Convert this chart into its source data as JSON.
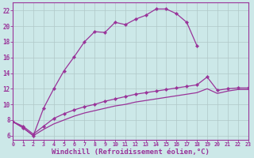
{
  "background_color": "#cce8e8",
  "grid_color": "#b0c8c8",
  "line_color": "#993399",
  "xlabel": "Windchill (Refroidissement éolien,°C)",
  "xlabel_fontsize": 6.5,
  "ylabel_ticks": [
    6,
    8,
    10,
    12,
    14,
    16,
    18,
    20,
    22
  ],
  "xlim": [
    0,
    23
  ],
  "ylim": [
    5.5,
    23.0
  ],
  "xtick_labels": [
    "0",
    "1",
    "2",
    "3",
    "4",
    "5",
    "6",
    "7",
    "8",
    "9",
    "10",
    "11",
    "12",
    "13",
    "14",
    "15",
    "16",
    "17",
    "18",
    "19",
    "20",
    "21",
    "22",
    "23"
  ],
  "line1_x": [
    0,
    1,
    2,
    3,
    4,
    5,
    6,
    7,
    8,
    9,
    10,
    11,
    12,
    13,
    14,
    15,
    16,
    17,
    18
  ],
  "line1_y": [
    7.8,
    7.0,
    6.0,
    9.5,
    12.0,
    14.3,
    16.1,
    18.0,
    19.3,
    19.2,
    20.5,
    20.2,
    20.9,
    21.4,
    22.2,
    22.2,
    21.6,
    20.5,
    17.5
  ],
  "line2_x": [
    0,
    1,
    2,
    3,
    4,
    5,
    6,
    7,
    8,
    9,
    10,
    11,
    12,
    13,
    14,
    15,
    16,
    17,
    18,
    19,
    20,
    21,
    22,
    23
  ],
  "line2_y": [
    7.8,
    7.2,
    6.2,
    7.2,
    8.2,
    8.8,
    9.3,
    9.7,
    10.0,
    10.4,
    10.7,
    11.0,
    11.3,
    11.5,
    11.7,
    11.9,
    12.1,
    12.3,
    12.5,
    13.5,
    11.8,
    12.0,
    12.1,
    12.1
  ],
  "line3_x": [
    0,
    1,
    2,
    3,
    4,
    5,
    6,
    7,
    8,
    9,
    10,
    11,
    12,
    13,
    14,
    15,
    16,
    17,
    18,
    19,
    20,
    21,
    22,
    23
  ],
  "line3_y": [
    7.8,
    7.0,
    6.0,
    6.8,
    7.5,
    8.0,
    8.5,
    8.9,
    9.2,
    9.5,
    9.8,
    10.0,
    10.3,
    10.5,
    10.7,
    10.9,
    11.1,
    11.3,
    11.5,
    12.0,
    11.4,
    11.7,
    11.9,
    11.9
  ]
}
